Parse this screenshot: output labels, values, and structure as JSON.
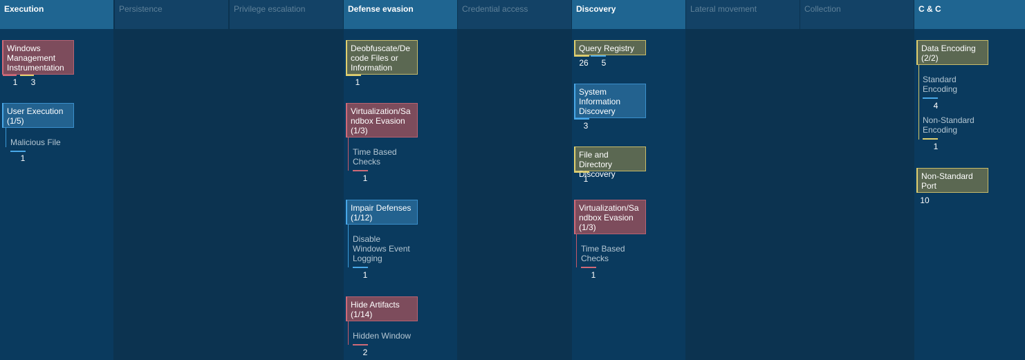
{
  "tactics": {
    "execution": "Execution",
    "persistence": "Persistence",
    "privilege_escalation": "Privilege escalation",
    "defense_evasion": "Defense evasion",
    "credential_access": "Credential access",
    "discovery": "Discovery",
    "lateral_movement": "Lateral movement",
    "collection": "Collection",
    "c2": "C & C"
  },
  "execution": {
    "wmi": {
      "label": "Windows Management Instrumentation",
      "count_red": "1",
      "count_yellow": "3",
      "color_red": "#d06a78",
      "color_yellow": "#e0d070"
    },
    "user_execution": {
      "label": "User Execution (1/5)",
      "sub": "Malicious File",
      "sub_count": "1",
      "color": "#49a8e8"
    }
  },
  "defense_evasion": {
    "deobfuscate": {
      "label": "Deobfuscate/Decode Files or Information",
      "count": "1",
      "color": "#e0d070"
    },
    "virtualization": {
      "label": "Virtualization/Sandbox Evasion (1/3)",
      "sub": "Time Based Checks",
      "sub_count": "1",
      "color": "#d06a78"
    },
    "impair": {
      "label": "Impair Defenses (1/12)",
      "sub": "Disable Windows Event Logging",
      "sub_count": "1",
      "color": "#49a8e8"
    },
    "hide": {
      "label": "Hide Artifacts (1/14)",
      "sub": "Hidden Window",
      "sub_count": "2",
      "color": "#d06a78"
    }
  },
  "discovery": {
    "query_registry": {
      "label": "Query Registry",
      "count_yellow": "26",
      "count_blue": "5"
    },
    "system_info": {
      "label": "System Information Discovery",
      "count": "3"
    },
    "file_dir": {
      "label": "File and Directory Discovery",
      "count": "1"
    },
    "virtualization": {
      "label": "Virtualization/Sandbox Evasion (1/3)",
      "sub": "Time Based Checks",
      "sub_count": "1"
    }
  },
  "c2": {
    "data_encoding": {
      "label": "Data Encoding (2/2)",
      "sub1": "Standard Encoding",
      "sub1_count": "4",
      "sub2": "Non-Standard Encoding",
      "sub2_count": "1"
    },
    "non_standard_port": {
      "label": "Non-Standard Port",
      "count": "10"
    }
  }
}
